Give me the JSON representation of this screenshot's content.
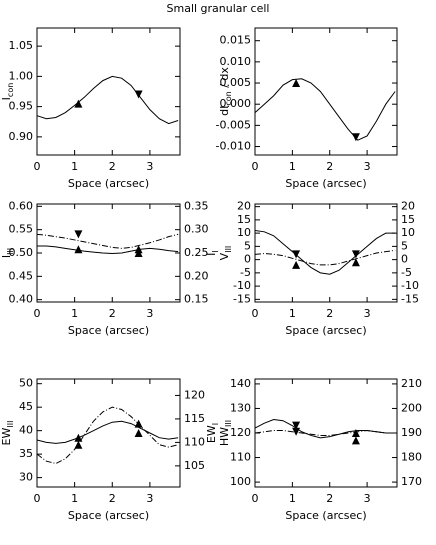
{
  "title": "Small granular cell",
  "chart_data": [
    {
      "type": "line",
      "x": [
        0,
        0.25,
        0.5,
        0.75,
        1,
        1.25,
        1.5,
        1.75,
        2,
        2.25,
        2.5,
        2.75,
        3,
        3.25,
        3.5,
        3.75
      ],
      "series": [
        {
          "color": "#000000",
          "style": "solid",
          "values": [
            0.935,
            0.93,
            0.932,
            0.94,
            0.952,
            0.965,
            0.98,
            0.993,
            1.0,
            0.997,
            0.985,
            0.965,
            0.945,
            0.93,
            0.922,
            0.927
          ]
        }
      ],
      "markers": [
        {
          "x": 1.1,
          "y": 0.955,
          "shape": "up"
        },
        {
          "x": 2.7,
          "y": 0.97,
          "shape": "down"
        }
      ],
      "xlim": [
        0,
        3.8
      ],
      "xticks": [
        0,
        1,
        2,
        3
      ],
      "ylim": [
        0.87,
        1.08
      ],
      "yticks": [
        {
          "value": 0.9,
          "label": "0.90"
        },
        0.95,
        {
          "value": 1,
          "label": "1.00"
        },
        1.05
      ],
      "xlabel": "Space (arcsec)",
      "ylabel": {
        "text": "I",
        "sub": "con"
      }
    },
    {
      "type": "line",
      "x": [
        0,
        0.25,
        0.5,
        0.75,
        1,
        1.25,
        1.5,
        1.75,
        2,
        2.25,
        2.5,
        2.75,
        3,
        3.25,
        3.5,
        3.75
      ],
      "series": [
        {
          "color": "#000000",
          "style": "solid",
          "values": [
            -0.002,
            0.0,
            0.002,
            0.0045,
            0.0058,
            0.006,
            0.005,
            0.003,
            0.0,
            -0.003,
            -0.006,
            -0.0085,
            -0.0075,
            -0.004,
            0.0,
            0.003
          ]
        }
      ],
      "markers": [
        {
          "x": 1.1,
          "y": 0.005,
          "shape": "up"
        },
        {
          "x": 2.7,
          "y": -0.0078,
          "shape": "down"
        }
      ],
      "xlim": [
        0,
        3.8
      ],
      "xticks": [
        0,
        1,
        2,
        3
      ],
      "ylim": [
        -0.012,
        0.018
      ],
      "yticks": [
        0.015,
        {
          "value": 0.01,
          "label": "0.010"
        },
        0.005,
        {
          "value": 0,
          "label": "0.000"
        },
        -0.005,
        {
          "value": -0.01,
          "label": "-0.010"
        }
      ],
      "xlabel": "Space (arcsec)",
      "ylabel": {
        "text": "dI",
        "sub": "con",
        "suffix": " / dx"
      }
    },
    {
      "type": "line",
      "x": [
        0,
        0.25,
        0.5,
        0.75,
        1,
        1.25,
        1.5,
        1.75,
        2,
        2.25,
        2.5,
        2.75,
        3,
        3.25,
        3.5,
        3.75
      ],
      "series": [
        {
          "color": "#000000",
          "style": "solid",
          "values": [
            0.515,
            0.515,
            0.513,
            0.51,
            0.507,
            0.504,
            0.502,
            0.5,
            0.499,
            0.5,
            0.504,
            0.508,
            0.51,
            0.508,
            0.505,
            0.503
          ]
        },
        {
          "color": "#000000",
          "style": "dashdot",
          "axis": "y2",
          "values": [
            0.29,
            0.288,
            0.285,
            0.282,
            0.278,
            0.274,
            0.27,
            0.266,
            0.262,
            0.26,
            0.262,
            0.267,
            0.272,
            0.278,
            0.285,
            0.29
          ]
        }
      ],
      "markers": [
        {
          "x": 1.1,
          "y": 0.508,
          "shape": "up"
        },
        {
          "x": 1.1,
          "y": 0.29,
          "shape": "down",
          "axis": "y2"
        },
        {
          "x": 2.7,
          "y": 0.508,
          "shape": "up"
        },
        {
          "x": 2.7,
          "y": 0.5,
          "shape": "up"
        }
      ],
      "xlim": [
        0,
        3.8
      ],
      "xticks": [
        0,
        1,
        2,
        3
      ],
      "ylim": [
        0.395,
        0.605
      ],
      "yticks": [
        {
          "value": 0.4,
          "label": "0.40"
        },
        0.45,
        {
          "value": 0.5,
          "label": "0.50"
        },
        0.55,
        {
          "value": 0.6,
          "label": "0.60"
        }
      ],
      "y2lim": [
        0.145,
        0.355
      ],
      "y2ticks": [
        0.15,
        {
          "value": 0.2,
          "label": "0.20"
        },
        0.25,
        {
          "value": 0.3,
          "label": "0.30"
        },
        0.35
      ],
      "xlabel": "Space (arcsec)",
      "ylabel": {
        "text": "I",
        "sub": "III"
      },
      "y2label": {
        "text": "I",
        "sub": "I"
      }
    },
    {
      "type": "line",
      "x": [
        0,
        0.25,
        0.5,
        0.75,
        1,
        1.25,
        1.5,
        1.75,
        2,
        2.25,
        2.5,
        2.75,
        3,
        3.25,
        3.5,
        3.75
      ],
      "series": [
        {
          "color": "#000000",
          "style": "solid",
          "values": [
            11,
            10.5,
            9,
            6,
            3,
            0,
            -3,
            -5,
            -5.5,
            -4,
            -1,
            2,
            5,
            8,
            10,
            10
          ]
        },
        {
          "color": "#000000",
          "style": "dashdot",
          "axis": "y2",
          "values": [
            2,
            2.3,
            2,
            1.5,
            0.5,
            -0.5,
            -1.5,
            -2,
            -2,
            -1.5,
            -0.5,
            0.5,
            1.5,
            2.5,
            3,
            3.5
          ]
        }
      ],
      "markers": [
        {
          "x": 1.1,
          "y": 2,
          "shape": "down"
        },
        {
          "x": 1.1,
          "y": -2,
          "shape": "up"
        },
        {
          "x": 2.7,
          "y": 2,
          "shape": "down"
        },
        {
          "x": 2.7,
          "y": -1,
          "shape": "up"
        }
      ],
      "xlim": [
        0,
        3.8
      ],
      "xticks": [
        0,
        1,
        2,
        3
      ],
      "ylim": [
        -16,
        21
      ],
      "yticks": [
        20,
        15,
        10,
        5,
        0,
        -5,
        -10,
        -15
      ],
      "y2lim": [
        -16,
        21
      ],
      "y2ticks": [
        20,
        15,
        10,
        5,
        0,
        -5,
        -10,
        -15
      ],
      "xlabel": "Space (arcsec)",
      "ylabel": {
        "text": "V",
        "sub": "III"
      }
    },
    {
      "type": "line",
      "x": [
        0,
        0.25,
        0.5,
        0.75,
        1,
        1.25,
        1.5,
        1.75,
        2,
        2.25,
        2.5,
        2.75,
        3,
        3.25,
        3.5,
        3.75
      ],
      "series": [
        {
          "color": "#000000",
          "style": "solid",
          "values": [
            38,
            37.5,
            37.3,
            37.5,
            38.2,
            39,
            40,
            41,
            41.8,
            42,
            41.5,
            40.5,
            39.5,
            38.5,
            38.2,
            38.5
          ]
        },
        {
          "color": "#000000",
          "style": "dashdot",
          "axis": "y2",
          "values": [
            107.5,
            106,
            105.5,
            106.5,
            108.5,
            111.5,
            114.5,
            116.5,
            117.5,
            117,
            115.5,
            113.5,
            111.5,
            109.5,
            109,
            109.5
          ]
        }
      ],
      "markers": [
        {
          "x": 1.1,
          "y": 38.5,
          "shape": "up"
        },
        {
          "x": 1.1,
          "y": 37,
          "shape": "up"
        },
        {
          "x": 2.7,
          "y": 41.5,
          "shape": "up"
        },
        {
          "x": 2.7,
          "y": 39.5,
          "shape": "up"
        }
      ],
      "xlim": [
        0,
        3.8
      ],
      "xticks": [
        0,
        1,
        2,
        3
      ],
      "ylim": [
        28,
        51
      ],
      "yticks": [
        30,
        35,
        40,
        45,
        50
      ],
      "y2lim": [
        100.5,
        123.5
      ],
      "y2ticks": [
        105,
        110,
        115,
        120
      ],
      "xlabel": "Space (arcsec)",
      "ylabel": {
        "text": "EW",
        "sub": "III"
      },
      "y2label": {
        "text": "EW",
        "sub": "I"
      }
    },
    {
      "type": "line",
      "x": [
        0,
        0.25,
        0.5,
        0.75,
        1,
        1.25,
        1.5,
        1.75,
        2,
        2.25,
        2.5,
        2.75,
        3,
        3.25,
        3.5,
        3.75
      ],
      "series": [
        {
          "color": "#000000",
          "style": "solid",
          "values": [
            122,
            124,
            125.5,
            125,
            123,
            120.5,
            119,
            118,
            118.5,
            119.5,
            120.5,
            121,
            121,
            120.5,
            120,
            120
          ]
        },
        {
          "color": "#000000",
          "style": "dashdot",
          "axis": "y2",
          "values": [
            190,
            190.5,
            191,
            191,
            190.5,
            190,
            189.5,
            189,
            189,
            189.5,
            190,
            190.5,
            191,
            190.5,
            190,
            190
          ]
        }
      ],
      "markers": [
        {
          "x": 1.1,
          "y": 123,
          "shape": "down"
        },
        {
          "x": 1.1,
          "y": 120.5,
          "shape": "down"
        },
        {
          "x": 2.7,
          "y": 120,
          "shape": "up"
        },
        {
          "x": 2.7,
          "y": 117,
          "shape": "up"
        }
      ],
      "xlim": [
        0,
        3.8
      ],
      "xticks": [
        0,
        1,
        2,
        3
      ],
      "ylim": [
        98,
        142
      ],
      "yticks": [
        100,
        110,
        120,
        130,
        140
      ],
      "y2lim": [
        168,
        212
      ],
      "y2ticks": [
        170,
        180,
        190,
        200,
        210
      ],
      "xlabel": "Space (arcsec)",
      "ylabel": {
        "text": "HW",
        "sub": "III"
      }
    }
  ]
}
